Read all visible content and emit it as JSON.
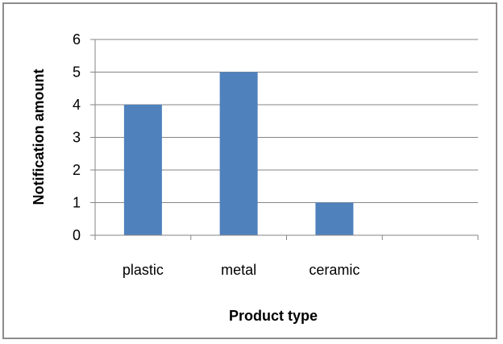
{
  "chart_data": {
    "type": "bar",
    "categories": [
      "plastic",
      "metal",
      "ceramic",
      ""
    ],
    "values": [
      4,
      5,
      1,
      0
    ],
    "title": "",
    "xlabel": "Product type",
    "ylabel": "Notification amount",
    "ylim": [
      0,
      6
    ],
    "yticks": [
      0,
      1,
      2,
      3,
      4,
      5,
      6
    ],
    "grid": true,
    "legend": "none",
    "bar_color": "#4f81bd",
    "grid_color": "#868686"
  }
}
